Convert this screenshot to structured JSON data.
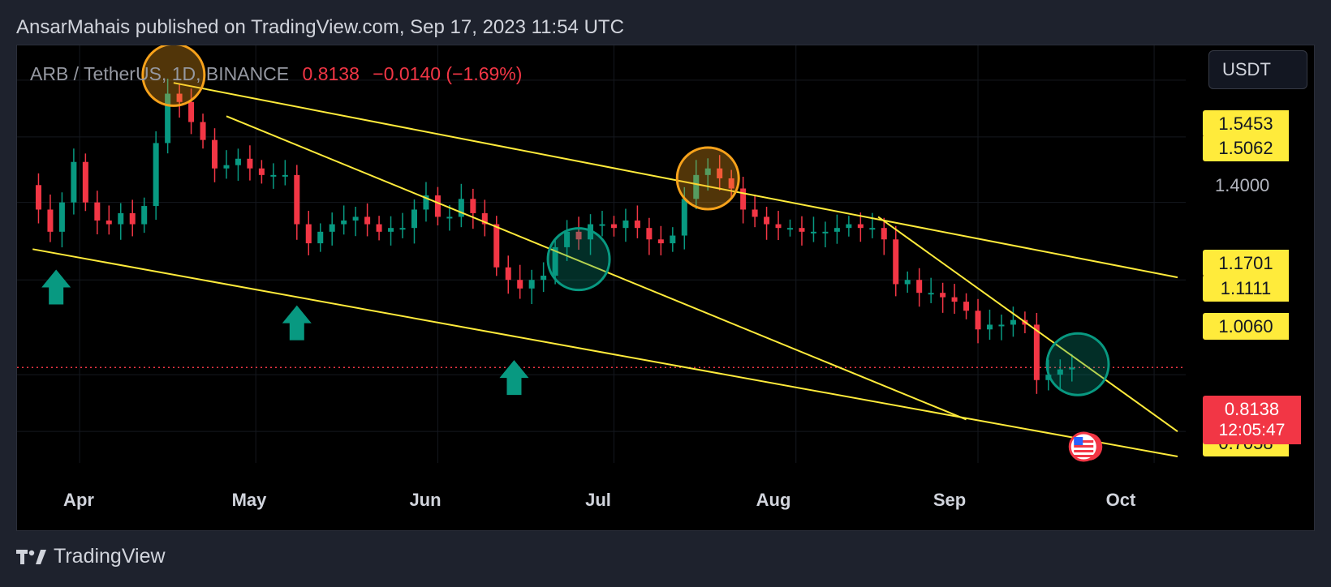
{
  "attribution": "AnsarMahais published on TradingView.com, Sep 17, 2023 11:54 UTC",
  "header": {
    "symbol": "ARB / TetherUS, 1D, BINANCE",
    "last_price": "0.8138",
    "change": "−0.0140 (−1.69%)"
  },
  "currency_button": "USDT",
  "price_axis": {
    "plain_ticks": [
      "1.4000"
    ],
    "yellow_labels": [
      "1.5453",
      "1.5062",
      "1.1701",
      "1.1111",
      "1.0060",
      "0.7058"
    ],
    "current_price": "0.8138",
    "countdown": "12:05:47"
  },
  "time_axis": [
    "Apr",
    "May",
    "Jun",
    "Jul",
    "Aug",
    "Sep",
    "Oct"
  ],
  "footer": {
    "brand": "TradingView"
  },
  "colors": {
    "up": "#089981",
    "down": "#f23645",
    "trendline": "#ffeb3b",
    "circle_orange": "#f7a21b",
    "circle_green": "#089981",
    "arrow": "#089981"
  },
  "chart_data": {
    "type": "candlestick",
    "symbol": "ARB/USDT",
    "timeframe": "1D",
    "exchange": "BINANCE",
    "x_range": [
      "2023-03-23",
      "2023-10-05"
    ],
    "y_log_scale": true,
    "y_visible_range": [
      0.65,
      1.72
    ],
    "last_price": 0.8138,
    "close_series": [
      {
        "date": "2023-03-23",
        "close": 1.25
      },
      {
        "date": "2023-03-25",
        "close": 1.18
      },
      {
        "date": "2023-03-27",
        "close": 1.12
      },
      {
        "date": "2023-03-29",
        "close": 1.2
      },
      {
        "date": "2023-03-31",
        "close": 1.32
      },
      {
        "date": "2023-04-02",
        "close": 1.2
      },
      {
        "date": "2023-04-04",
        "close": 1.15
      },
      {
        "date": "2023-04-06",
        "close": 1.14
      },
      {
        "date": "2023-04-08",
        "close": 1.17
      },
      {
        "date": "2023-04-10",
        "close": 1.14
      },
      {
        "date": "2023-04-12",
        "close": 1.19
      },
      {
        "date": "2023-04-14",
        "close": 1.38
      },
      {
        "date": "2023-04-16",
        "close": 1.55
      },
      {
        "date": "2023-04-18",
        "close": 1.52
      },
      {
        "date": "2023-04-20",
        "close": 1.45
      },
      {
        "date": "2023-04-22",
        "close": 1.39
      },
      {
        "date": "2023-04-24",
        "close": 1.3
      },
      {
        "date": "2023-04-26",
        "close": 1.31
      },
      {
        "date": "2023-04-28",
        "close": 1.33
      },
      {
        "date": "2023-04-30",
        "close": 1.3
      },
      {
        "date": "2023-05-02",
        "close": 1.28
      },
      {
        "date": "2023-05-04",
        "close": 1.28
      },
      {
        "date": "2023-05-06",
        "close": 1.28
      },
      {
        "date": "2023-05-08",
        "close": 1.14
      },
      {
        "date": "2023-05-10",
        "close": 1.09
      },
      {
        "date": "2023-05-12",
        "close": 1.12
      },
      {
        "date": "2023-05-14",
        "close": 1.14
      },
      {
        "date": "2023-05-16",
        "close": 1.15
      },
      {
        "date": "2023-05-18",
        "close": 1.16
      },
      {
        "date": "2023-05-20",
        "close": 1.14
      },
      {
        "date": "2023-05-22",
        "close": 1.12
      },
      {
        "date": "2023-05-24",
        "close": 1.13
      },
      {
        "date": "2023-05-26",
        "close": 1.13
      },
      {
        "date": "2023-05-28",
        "close": 1.18
      },
      {
        "date": "2023-05-30",
        "close": 1.22
      },
      {
        "date": "2023-06-01",
        "close": 1.16
      },
      {
        "date": "2023-06-03",
        "close": 1.16
      },
      {
        "date": "2023-06-05",
        "close": 1.21
      },
      {
        "date": "2023-06-07",
        "close": 1.17
      },
      {
        "date": "2023-06-09",
        "close": 1.14
      },
      {
        "date": "2023-06-11",
        "close": 1.03
      },
      {
        "date": "2023-06-13",
        "close": 1.0
      },
      {
        "date": "2023-06-15",
        "close": 0.98
      },
      {
        "date": "2023-06-17",
        "close": 1.0
      },
      {
        "date": "2023-06-19",
        "close": 1.01
      },
      {
        "date": "2023-06-21",
        "close": 1.08
      },
      {
        "date": "2023-06-23",
        "close": 1.12
      },
      {
        "date": "2023-06-25",
        "close": 1.1
      },
      {
        "date": "2023-06-27",
        "close": 1.14
      },
      {
        "date": "2023-06-29",
        "close": 1.14
      },
      {
        "date": "2023-07-01",
        "close": 1.13
      },
      {
        "date": "2023-07-03",
        "close": 1.15
      },
      {
        "date": "2023-07-05",
        "close": 1.13
      },
      {
        "date": "2023-07-07",
        "close": 1.1
      },
      {
        "date": "2023-07-09",
        "close": 1.09
      },
      {
        "date": "2023-07-11",
        "close": 1.11
      },
      {
        "date": "2023-07-13",
        "close": 1.21
      },
      {
        "date": "2023-07-15",
        "close": 1.28
      },
      {
        "date": "2023-07-17",
        "close": 1.3
      },
      {
        "date": "2023-07-19",
        "close": 1.27
      },
      {
        "date": "2023-07-21",
        "close": 1.24
      },
      {
        "date": "2023-07-23",
        "close": 1.18
      },
      {
        "date": "2023-07-25",
        "close": 1.16
      },
      {
        "date": "2023-07-27",
        "close": 1.14
      },
      {
        "date": "2023-07-29",
        "close": 1.13
      },
      {
        "date": "2023-07-31",
        "close": 1.13
      },
      {
        "date": "2023-08-02",
        "close": 1.12
      },
      {
        "date": "2023-08-04",
        "close": 1.12
      },
      {
        "date": "2023-08-06",
        "close": 1.12
      },
      {
        "date": "2023-08-08",
        "close": 1.13
      },
      {
        "date": "2023-08-10",
        "close": 1.14
      },
      {
        "date": "2023-08-12",
        "close": 1.13
      },
      {
        "date": "2023-08-14",
        "close": 1.13
      },
      {
        "date": "2023-08-16",
        "close": 1.1
      },
      {
        "date": "2023-08-18",
        "close": 0.99
      },
      {
        "date": "2023-08-20",
        "close": 1.0
      },
      {
        "date": "2023-08-22",
        "close": 0.97
      },
      {
        "date": "2023-08-24",
        "close": 0.97
      },
      {
        "date": "2023-08-26",
        "close": 0.96
      },
      {
        "date": "2023-08-28",
        "close": 0.95
      },
      {
        "date": "2023-08-30",
        "close": 0.93
      },
      {
        "date": "2023-09-01",
        "close": 0.89
      },
      {
        "date": "2023-09-03",
        "close": 0.9
      },
      {
        "date": "2023-09-05",
        "close": 0.9
      },
      {
        "date": "2023-09-07",
        "close": 0.91
      },
      {
        "date": "2023-09-09",
        "close": 0.9
      },
      {
        "date": "2023-09-11",
        "close": 0.79
      },
      {
        "date": "2023-09-13",
        "close": 0.8
      },
      {
        "date": "2023-09-15",
        "close": 0.81
      },
      {
        "date": "2023-09-17",
        "close": 0.8138
      }
    ],
    "trendlines": [
      {
        "from": {
          "date": "2023-04-17",
          "price": 1.59
        },
        "to": {
          "date": "2023-10-05",
          "price": 1.006
        }
      },
      {
        "from": {
          "date": "2023-03-24",
          "price": 1.075
        },
        "to": {
          "date": "2023-10-05",
          "price": 0.66
        }
      },
      {
        "from": {
          "date": "2023-04-26",
          "price": 1.47
        },
        "to": {
          "date": "2023-08-30",
          "price": 0.72
        }
      },
      {
        "from": {
          "date": "2023-08-15",
          "price": 1.16
        },
        "to": {
          "date": "2023-10-05",
          "price": 0.7
        }
      }
    ],
    "highlight_circles": [
      {
        "date": "2023-04-17",
        "price": 1.62,
        "color": "orange"
      },
      {
        "date": "2023-07-17",
        "price": 1.27,
        "color": "orange"
      },
      {
        "date": "2023-06-25",
        "price": 1.05,
        "color": "green"
      },
      {
        "date": "2023-09-18",
        "price": 0.82,
        "color": "green"
      }
    ],
    "up_arrows": [
      {
        "date": "2023-03-28",
        "price": 0.99
      },
      {
        "date": "2023-05-08",
        "price": 0.91
      },
      {
        "date": "2023-06-14",
        "price": 0.8
      }
    ]
  }
}
